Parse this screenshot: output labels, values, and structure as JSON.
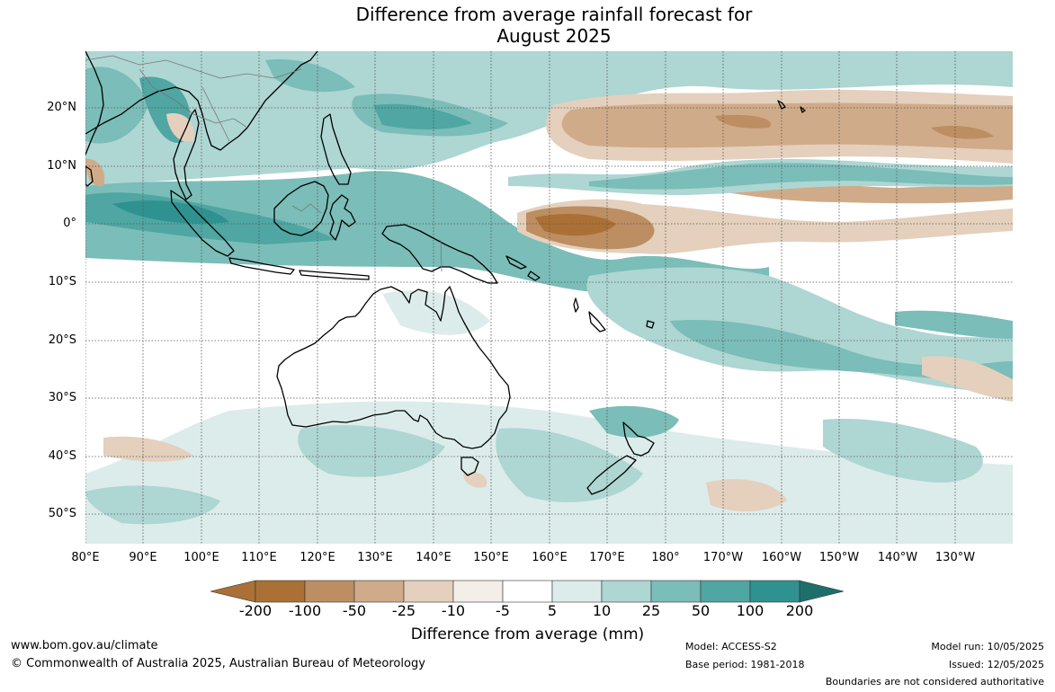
{
  "title": {
    "line1": "Difference from average rainfall forecast for",
    "line2": "August 2025"
  },
  "map": {
    "region": "Australia and the Western Pacific",
    "lat_labels": [
      "20°N",
      "10°N",
      "0°",
      "10°S",
      "20°S",
      "30°S",
      "40°S",
      "50°S"
    ],
    "lon_labels": [
      "80°E",
      "90°E",
      "100°E",
      "110°E",
      "120°E",
      "130°E",
      "140°E",
      "150°E",
      "160°E",
      "170°E",
      "180°",
      "170°W",
      "160°W",
      "150°W",
      "140°W",
      "130°W"
    ]
  },
  "colorbar": {
    "labels": [
      "-200",
      "-100",
      "-50",
      "-25",
      "-10",
      "-5",
      "5",
      "10",
      "25",
      "50",
      "100",
      "200"
    ],
    "colors": [
      "#ab7036",
      "#bc8e62",
      "#d0ab89",
      "#e4d0bd",
      "#f3eee7",
      "#ffffff",
      "#dcecea",
      "#aed6d3",
      "#7bbdb8",
      "#4fa6a2",
      "#2f9290",
      "#1e6e6c"
    ],
    "title": "Difference from average (mm)"
  },
  "footer": {
    "website": "www.bom.gov.au/climate",
    "copyright": "© Commonwealth of Australia 2025, Australian Bureau of Meteorology",
    "model": "Model: ACCESS-S2",
    "base_period": "Base period: 1981-2018",
    "model_run": "Model run: 10/05/2025",
    "issued": "Issued: 12/05/2025",
    "disclaimer": "Boundaries are not considered authoritative"
  }
}
